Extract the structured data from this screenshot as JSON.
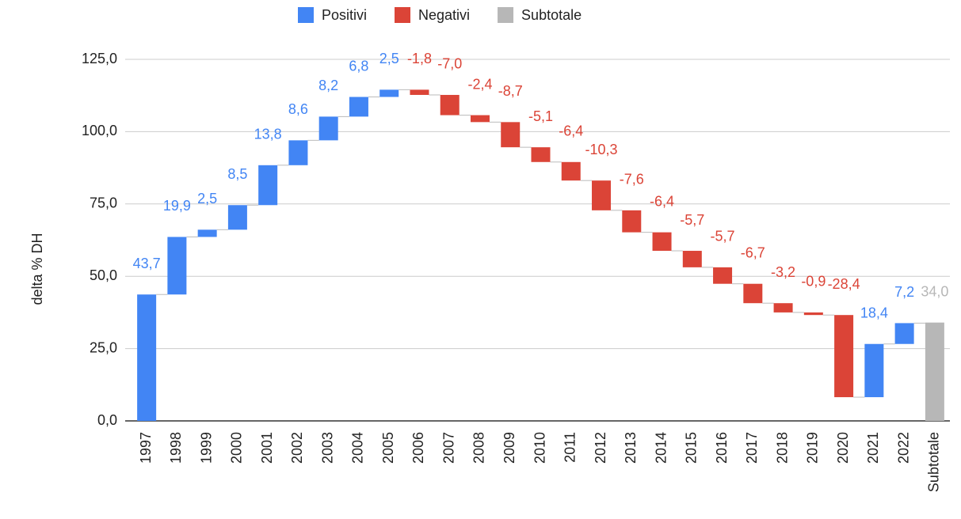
{
  "chart_data": {
    "type": "waterfall",
    "legend": [
      {
        "name": "Positivi",
        "color": "#4285f4"
      },
      {
        "name": "Negativi",
        "color": "#db4437"
      },
      {
        "name": "Subtotale",
        "color": "#b7b7b7"
      }
    ],
    "y_label": "delta % DH",
    "categories": [
      "1997",
      "1998",
      "1999",
      "2000",
      "2001",
      "2002",
      "2003",
      "2004",
      "2005",
      "2006",
      "2007",
      "2008",
      "2009",
      "2010",
      "2011",
      "2012",
      "2013",
      "2014",
      "2015",
      "2016",
      "2017",
      "2018",
      "2019",
      "2020",
      "2021",
      "2022"
    ],
    "values": [
      43.7,
      19.9,
      2.5,
      8.5,
      13.8,
      8.6,
      8.2,
      6.8,
      2.5,
      -1.8,
      -7.0,
      -2.4,
      -8.7,
      -5.1,
      -6.4,
      -10.3,
      -7.6,
      -6.4,
      -5.7,
      -5.7,
      -6.7,
      -3.2,
      -0.9,
      -28.4,
      18.4,
      7.2
    ],
    "value_labels": [
      "43,7",
      "19,9",
      "2,5",
      "8,5",
      "13,8",
      "8,6",
      "8,2",
      "6,8",
      "2,5",
      "-1,8",
      "-7,0",
      "-2,4",
      "-8,7",
      "-5,1",
      "-6,4",
      "-10,3",
      "-7,6",
      "-6,4",
      "-5,7",
      "-5,7",
      "-6,7",
      "-3,2",
      "-0,9",
      "-28,4",
      "18,4",
      "7,2"
    ],
    "subtotal": {
      "label": "Subtotale",
      "value": 34.0,
      "value_label": "34,0"
    },
    "ylim": [
      0,
      125
    ],
    "yticks": [
      {
        "value": 0,
        "label": "0,0"
      },
      {
        "value": 25,
        "label": "25,0"
      },
      {
        "value": 50,
        "label": "50,0"
      },
      {
        "value": 75,
        "label": "75,0"
      },
      {
        "value": 100,
        "label": "100,0"
      },
      {
        "value": 125,
        "label": "125,0"
      }
    ],
    "grid": true
  }
}
